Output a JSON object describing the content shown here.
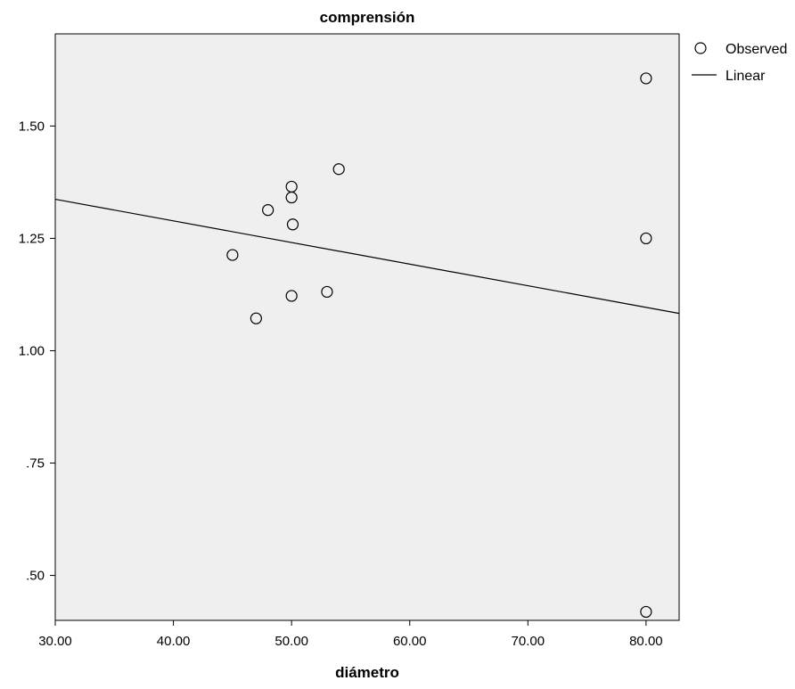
{
  "chart_data": {
    "type": "scatter",
    "title": "comprensión",
    "xlabel": "diámetro",
    "ylabel": "",
    "xlim": [
      30,
      82.8
    ],
    "ylim": [
      0.4,
      1.705
    ],
    "x_ticks": [
      30,
      40,
      50,
      60,
      70,
      80
    ],
    "x_tick_labels": [
      "30.00",
      "40.00",
      "50.00",
      "60.00",
      "70.00",
      "80.00"
    ],
    "y_ticks": [
      0.5,
      0.75,
      1.0,
      1.25,
      1.5
    ],
    "y_tick_labels": [
      ".50",
      ".75",
      "1.00",
      "1.25",
      "1.50"
    ],
    "grid": false,
    "legend_position": "top-right outside",
    "colors": {
      "plot_background": "#efefef",
      "marker_stroke": "#000000",
      "line": "#000000",
      "axis": "#000000"
    },
    "series": [
      {
        "name": "Observed",
        "kind": "points",
        "marker": "open-circle",
        "points": [
          {
            "x": 45.0,
            "y": 1.213
          },
          {
            "x": 47.0,
            "y": 1.072
          },
          {
            "x": 48.0,
            "y": 1.313
          },
          {
            "x": 50.0,
            "y": 1.365
          },
          {
            "x": 50.0,
            "y": 1.341
          },
          {
            "x": 50.1,
            "y": 1.281
          },
          {
            "x": 50.0,
            "y": 1.122
          },
          {
            "x": 53.0,
            "y": 1.131
          },
          {
            "x": 54.0,
            "y": 1.404
          },
          {
            "x": 80.0,
            "y": 1.606
          },
          {
            "x": 80.0,
            "y": 1.25
          },
          {
            "x": 80.0,
            "y": 0.419
          }
        ]
      },
      {
        "name": "Linear",
        "kind": "line",
        "points": [
          {
            "x": 30.0,
            "y": 1.337
          },
          {
            "x": 82.8,
            "y": 1.083
          }
        ]
      }
    ]
  }
}
